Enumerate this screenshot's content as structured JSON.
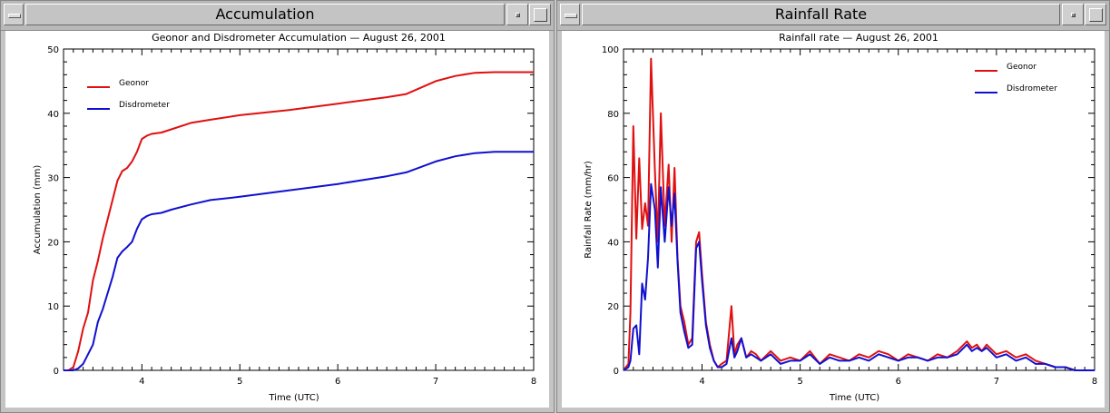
{
  "windows": {
    "left": {
      "title": "Accumulation"
    },
    "right": {
      "title": "Rainfall Rate"
    }
  },
  "colors": {
    "geonor": "#e01010",
    "disdrometer": "#1010d0"
  },
  "chart_data": [
    {
      "type": "line",
      "title": "Geonor and Disdrometer Accumulation — August 26, 2001",
      "xlabel": "Time (UTC)",
      "ylabel": "Accumulation (mm)",
      "xlim": [
        3.2,
        8
      ],
      "ylim": [
        0,
        50
      ],
      "xticks": [
        4,
        5,
        6,
        7,
        8
      ],
      "yticks": [
        0,
        10,
        20,
        30,
        40,
        50
      ],
      "legend": "top-left",
      "series": [
        {
          "name": "Geonor",
          "x": [
            3.2,
            3.25,
            3.3,
            3.35,
            3.4,
            3.45,
            3.5,
            3.55,
            3.6,
            3.65,
            3.7,
            3.75,
            3.8,
            3.85,
            3.9,
            3.95,
            4.0,
            4.05,
            4.1,
            4.2,
            4.3,
            4.5,
            4.7,
            5.0,
            5.5,
            6.0,
            6.5,
            6.7,
            7.0,
            7.2,
            7.4,
            7.6,
            8.0
          ],
          "y": [
            0,
            0,
            0.5,
            3,
            6.5,
            9,
            14,
            17,
            20.5,
            23.5,
            26.5,
            29.5,
            31,
            31.5,
            32.5,
            34,
            36,
            36.5,
            36.8,
            37,
            37.5,
            38.5,
            39,
            39.7,
            40.5,
            41.5,
            42.5,
            43,
            45,
            45.8,
            46.3,
            46.4,
            46.4
          ]
        },
        {
          "name": "Disdrometer",
          "x": [
            3.2,
            3.3,
            3.35,
            3.4,
            3.45,
            3.5,
            3.55,
            3.6,
            3.65,
            3.7,
            3.75,
            3.8,
            3.85,
            3.9,
            3.95,
            4.0,
            4.05,
            4.1,
            4.2,
            4.3,
            4.5,
            4.7,
            5.0,
            5.5,
            6.0,
            6.5,
            6.7,
            7.0,
            7.2,
            7.4,
            7.6,
            8.0
          ],
          "y": [
            0,
            0,
            0.3,
            1,
            2.5,
            4,
            7.5,
            9.5,
            12,
            14.5,
            17.5,
            18.5,
            19.2,
            20,
            22,
            23.5,
            24,
            24.3,
            24.5,
            25,
            25.8,
            26.5,
            27,
            28,
            29,
            30.2,
            30.8,
            32.5,
            33.3,
            33.8,
            34,
            34
          ]
        }
      ]
    },
    {
      "type": "line",
      "title": "Rainfall rate — August 26, 2001",
      "xlabel": "Time (UTC)",
      "ylabel": "Rainfall Rate (mm/hr)",
      "xlim": [
        3.2,
        8
      ],
      "ylim": [
        0,
        100
      ],
      "xticks": [
        4,
        5,
        6,
        7,
        8
      ],
      "yticks": [
        0,
        20,
        40,
        60,
        80,
        100
      ],
      "legend": "top-right",
      "series": [
        {
          "name": "Geonor",
          "x": [
            3.2,
            3.25,
            3.27,
            3.3,
            3.33,
            3.36,
            3.39,
            3.42,
            3.45,
            3.48,
            3.52,
            3.55,
            3.58,
            3.62,
            3.66,
            3.69,
            3.72,
            3.75,
            3.78,
            3.82,
            3.86,
            3.9,
            3.94,
            3.97,
            4.0,
            4.04,
            4.08,
            4.12,
            4.16,
            4.2,
            4.25,
            4.3,
            4.33,
            4.36,
            4.4,
            4.45,
            4.5,
            4.55,
            4.6,
            4.7,
            4.8,
            4.9,
            5.0,
            5.1,
            5.2,
            5.3,
            5.4,
            5.5,
            5.6,
            5.7,
            5.8,
            5.9,
            6.0,
            6.1,
            6.2,
            6.3,
            6.4,
            6.5,
            6.6,
            6.7,
            6.75,
            6.8,
            6.85,
            6.9,
            7.0,
            7.1,
            7.2,
            7.3,
            7.4,
            7.5,
            7.6,
            7.7,
            7.8,
            8.0
          ],
          "y": [
            0,
            2,
            18,
            76,
            41,
            66,
            44,
            52,
            45,
            97,
            62,
            40,
            80,
            45,
            64,
            40,
            63,
            35,
            20,
            15,
            8,
            10,
            40,
            43,
            30,
            15,
            8,
            3,
            1,
            2,
            3,
            20,
            5,
            8,
            10,
            4,
            6,
            5,
            3,
            6,
            3,
            4,
            3,
            6,
            2,
            5,
            4,
            3,
            5,
            4,
            6,
            5,
            3,
            5,
            4,
            3,
            5,
            4,
            6,
            9,
            7,
            8,
            6,
            8,
            5,
            6,
            4,
            5,
            3,
            2,
            1,
            1,
            0,
            0
          ]
        },
        {
          "name": "Disdrometer",
          "x": [
            3.2,
            3.25,
            3.27,
            3.3,
            3.33,
            3.36,
            3.39,
            3.42,
            3.45,
            3.48,
            3.52,
            3.55,
            3.58,
            3.62,
            3.66,
            3.69,
            3.72,
            3.75,
            3.78,
            3.82,
            3.86,
            3.9,
            3.94,
            3.97,
            4.0,
            4.04,
            4.08,
            4.12,
            4.16,
            4.2,
            4.25,
            4.3,
            4.33,
            4.36,
            4.4,
            4.45,
            4.5,
            4.55,
            4.6,
            4.7,
            4.8,
            4.9,
            5.0,
            5.1,
            5.2,
            5.3,
            5.4,
            5.5,
            5.6,
            5.7,
            5.8,
            5.9,
            6.0,
            6.1,
            6.2,
            6.3,
            6.4,
            6.5,
            6.6,
            6.7,
            6.75,
            6.8,
            6.85,
            6.9,
            7.0,
            7.1,
            7.2,
            7.3,
            7.4,
            7.5,
            7.6,
            7.7,
            7.8,
            8.0
          ],
          "y": [
            0,
            1,
            3,
            13,
            14,
            5,
            27,
            22,
            35,
            58,
            50,
            32,
            57,
            40,
            57,
            45,
            55,
            34,
            18,
            12,
            7,
            8,
            38,
            40,
            28,
            14,
            7,
            3,
            1,
            1,
            2,
            10,
            4,
            6,
            10,
            4,
            5,
            4,
            3,
            5,
            2,
            3,
            3,
            5,
            2,
            4,
            3,
            3,
            4,
            3,
            5,
            4,
            3,
            4,
            4,
            3,
            4,
            4,
            5,
            8,
            6,
            7,
            6,
            7,
            4,
            5,
            3,
            4,
            2,
            2,
            1,
            1,
            0,
            0
          ]
        }
      ]
    }
  ]
}
